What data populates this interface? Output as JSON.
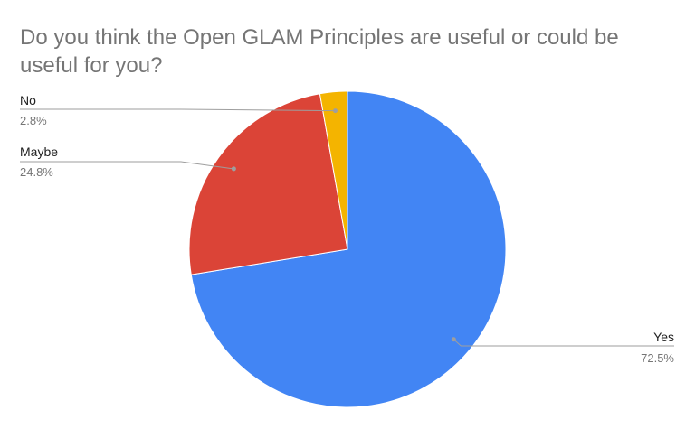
{
  "chart_data": {
    "type": "pie",
    "title": "Do you think the Open GLAM Principles are useful or could be useful for you?",
    "categories": [
      "Yes",
      "Maybe",
      "No"
    ],
    "values": [
      72.5,
      24.8,
      2.8
    ],
    "labels_pct": [
      "72.5%",
      "24.8%",
      "2.8%"
    ],
    "colors": [
      "#4285f4",
      "#db4437",
      "#f4b400"
    ],
    "leader_color": "#9e9e9e",
    "start_angle_deg": 0,
    "direction": "clockwise"
  }
}
